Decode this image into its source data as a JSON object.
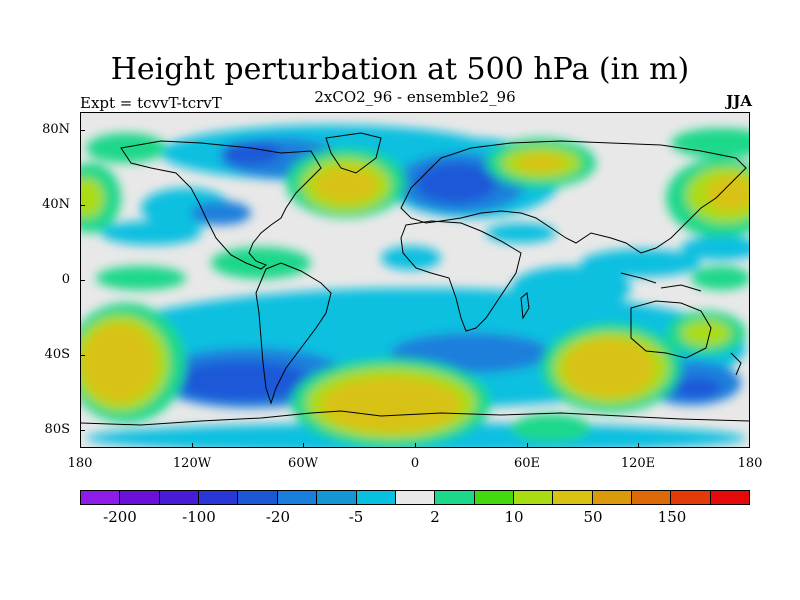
{
  "title": "Height perturbation at 500 hPa (in m)",
  "left_subtitle": "Expt = tcvvT-tcrvT",
  "center_subtitle": "2xCO2_96 - ensemble2_96",
  "right_subtitle": "JJA",
  "lat_labels": [
    "80N",
    "40N",
    "0",
    "40S",
    "80S"
  ],
  "lon_labels": [
    "180",
    "120W",
    "60W",
    "0",
    "60E",
    "120E",
    "180"
  ],
  "colorbar": {
    "colors": [
      "#8d1ce8",
      "#6a10d8",
      "#4a1bd6",
      "#2a37d8",
      "#1a58d8",
      "#1a7fdc",
      "#1596d4",
      "#08c0e0",
      "#e8e8e8",
      "#1ed88a",
      "#44d80f",
      "#aadc12",
      "#d8c212",
      "#da9a0c",
      "#dc6a08",
      "#e03b08",
      "#e40a0a"
    ],
    "labels": [
      "-200",
      "-100",
      "-20",
      "-5",
      "2",
      "10",
      "50",
      "150"
    ]
  }
}
